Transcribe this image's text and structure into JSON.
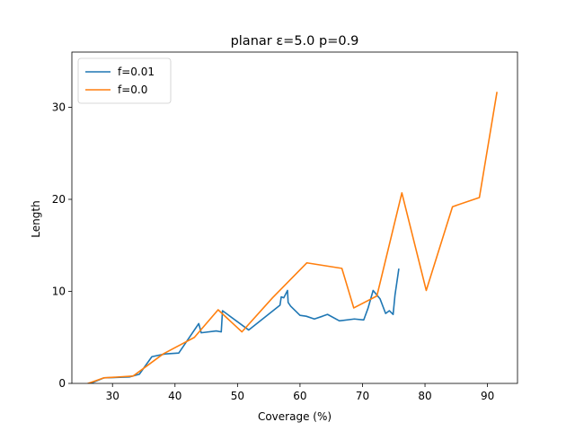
{
  "chart_data": {
    "type": "line",
    "title": "planar ε=5.0 p=0.9",
    "xlabel": "Coverage (%)",
    "ylabel": "Length",
    "xlim": [
      23.5,
      94.8
    ],
    "ylim": [
      0,
      36
    ],
    "xticks": [
      30,
      40,
      50,
      60,
      70,
      80,
      90
    ],
    "yticks": [
      0,
      10,
      20,
      30
    ],
    "grid": false,
    "legend_position": "upper-left",
    "series": [
      {
        "name": "f=0.01",
        "color": "#1f77b4",
        "x": [
          26.5,
          28.6,
          32.7,
          34.3,
          36.3,
          38.4,
          40.6,
          43.8,
          44.2,
          46.6,
          47.4,
          47.6,
          51.8,
          56.8,
          57.0,
          57.4,
          58.0,
          58.1,
          58.5,
          60.0,
          61.0,
          62.3,
          63.6,
          64.4,
          66.3,
          68.7,
          70.2,
          70.9,
          71.7,
          72.8,
          73.7,
          74.3,
          74.9,
          75.2,
          75.8
        ],
        "y": [
          0.0,
          0.6,
          0.7,
          1.0,
          2.9,
          3.2,
          3.3,
          6.5,
          5.5,
          5.7,
          5.6,
          7.9,
          5.8,
          8.5,
          9.4,
          9.3,
          10.1,
          8.8,
          8.4,
          7.4,
          7.3,
          7.0,
          7.3,
          7.5,
          6.8,
          7.0,
          6.9,
          8.2,
          10.1,
          9.2,
          7.6,
          7.9,
          7.5,
          9.6,
          12.4
        ]
      },
      {
        "name": "f=0.0",
        "color": "#ff7f0e",
        "x": [
          26.1,
          28.6,
          33.3,
          38.1,
          43.1,
          46.9,
          50.7,
          55.6,
          61.1,
          66.7,
          68.6,
          72.3,
          76.3,
          80.2,
          84.4,
          88.7,
          91.5
        ],
        "y": [
          0.0,
          0.6,
          0.8,
          3.2,
          5.0,
          8.0,
          5.6,
          9.3,
          13.1,
          12.5,
          8.2,
          9.5,
          20.7,
          10.1,
          19.2,
          20.2,
          31.6
        ]
      }
    ]
  }
}
